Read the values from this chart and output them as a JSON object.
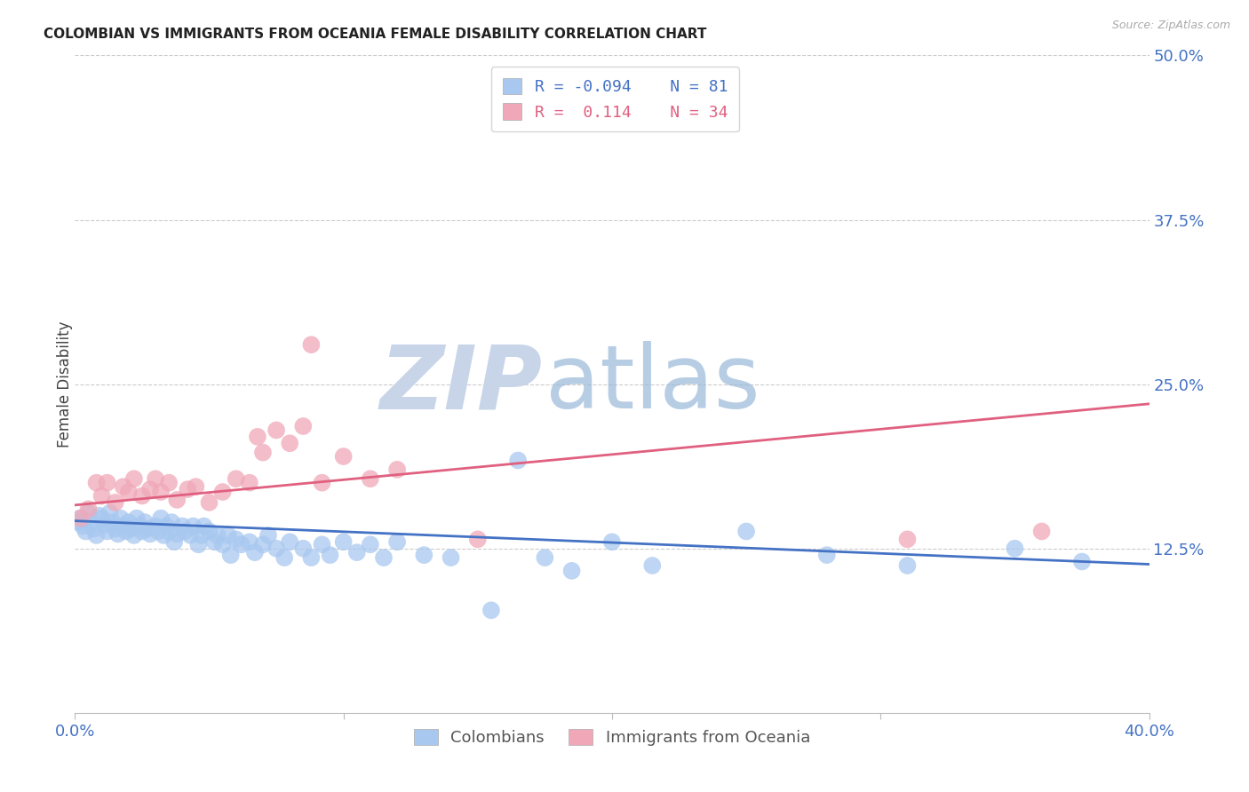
{
  "title": "COLOMBIAN VS IMMIGRANTS FROM OCEANIA FEMALE DISABILITY CORRELATION CHART",
  "source": "Source: ZipAtlas.com",
  "ylabel": "Female Disability",
  "R_blue": -0.094,
  "N_blue": 81,
  "R_pink": 0.114,
  "N_pink": 34,
  "blue_scatter_color": "#a8c8f0",
  "pink_scatter_color": "#f0a8b8",
  "blue_line_color": "#4472c4",
  "pink_line_color": "#e06080",
  "title_color": "#222222",
  "source_color": "#aaaaaa",
  "axis_tick_color": "#4472c4",
  "watermark_ZIP_color": "#c8d4e8",
  "watermark_atlas_color": "#98b8d8",
  "background_color": "#ffffff",
  "grid_color": "#cccccc",
  "legend_labels": [
    "Colombians",
    "Immigrants from Oceania"
  ],
  "xlim": [
    0.0,
    0.4
  ],
  "ylim": [
    0.0,
    0.5
  ],
  "colombians_x": [
    0.001,
    0.002,
    0.003,
    0.004,
    0.005,
    0.006,
    0.007,
    0.008,
    0.009,
    0.01,
    0.011,
    0.012,
    0.013,
    0.014,
    0.015,
    0.016,
    0.017,
    0.018,
    0.019,
    0.02,
    0.021,
    0.022,
    0.023,
    0.024,
    0.025,
    0.026,
    0.027,
    0.028,
    0.03,
    0.031,
    0.032,
    0.033,
    0.034,
    0.035,
    0.036,
    0.037,
    0.038,
    0.04,
    0.041,
    0.043,
    0.044,
    0.046,
    0.047,
    0.048,
    0.05,
    0.052,
    0.053,
    0.055,
    0.057,
    0.058,
    0.06,
    0.062,
    0.065,
    0.067,
    0.07,
    0.072,
    0.075,
    0.078,
    0.08,
    0.085,
    0.088,
    0.092,
    0.095,
    0.1,
    0.105,
    0.11,
    0.115,
    0.12,
    0.13,
    0.14,
    0.155,
    0.165,
    0.175,
    0.185,
    0.2,
    0.215,
    0.25,
    0.28,
    0.31,
    0.35,
    0.375
  ],
  "colombians_y": [
    0.145,
    0.148,
    0.142,
    0.138,
    0.152,
    0.145,
    0.14,
    0.135,
    0.15,
    0.148,
    0.143,
    0.138,
    0.152,
    0.145,
    0.14,
    0.136,
    0.148,
    0.142,
    0.138,
    0.145,
    0.14,
    0.135,
    0.148,
    0.142,
    0.138,
    0.145,
    0.14,
    0.136,
    0.142,
    0.138,
    0.148,
    0.135,
    0.142,
    0.138,
    0.145,
    0.13,
    0.136,
    0.142,
    0.138,
    0.135,
    0.142,
    0.128,
    0.135,
    0.142,
    0.138,
    0.13,
    0.135,
    0.128,
    0.135,
    0.12,
    0.132,
    0.128,
    0.13,
    0.122,
    0.128,
    0.135,
    0.125,
    0.118,
    0.13,
    0.125,
    0.118,
    0.128,
    0.12,
    0.13,
    0.122,
    0.128,
    0.118,
    0.13,
    0.12,
    0.118,
    0.078,
    0.192,
    0.118,
    0.108,
    0.13,
    0.112,
    0.138,
    0.12,
    0.112,
    0.125,
    0.115
  ],
  "oceania_x": [
    0.002,
    0.005,
    0.008,
    0.01,
    0.012,
    0.015,
    0.018,
    0.02,
    0.022,
    0.025,
    0.028,
    0.03,
    0.032,
    0.035,
    0.038,
    0.042,
    0.045,
    0.05,
    0.055,
    0.06,
    0.065,
    0.068,
    0.07,
    0.075,
    0.08,
    0.085,
    0.088,
    0.092,
    0.1,
    0.11,
    0.12,
    0.15,
    0.31,
    0.36
  ],
  "oceania_y": [
    0.148,
    0.155,
    0.175,
    0.165,
    0.175,
    0.16,
    0.172,
    0.168,
    0.178,
    0.165,
    0.17,
    0.178,
    0.168,
    0.175,
    0.162,
    0.17,
    0.172,
    0.16,
    0.168,
    0.178,
    0.175,
    0.21,
    0.198,
    0.215,
    0.205,
    0.218,
    0.28,
    0.175,
    0.195,
    0.178,
    0.185,
    0.132,
    0.132,
    0.138
  ],
  "blue_line_start_y": 0.146,
  "blue_line_end_y": 0.113,
  "pink_line_start_y": 0.158,
  "pink_line_end_y": 0.235
}
